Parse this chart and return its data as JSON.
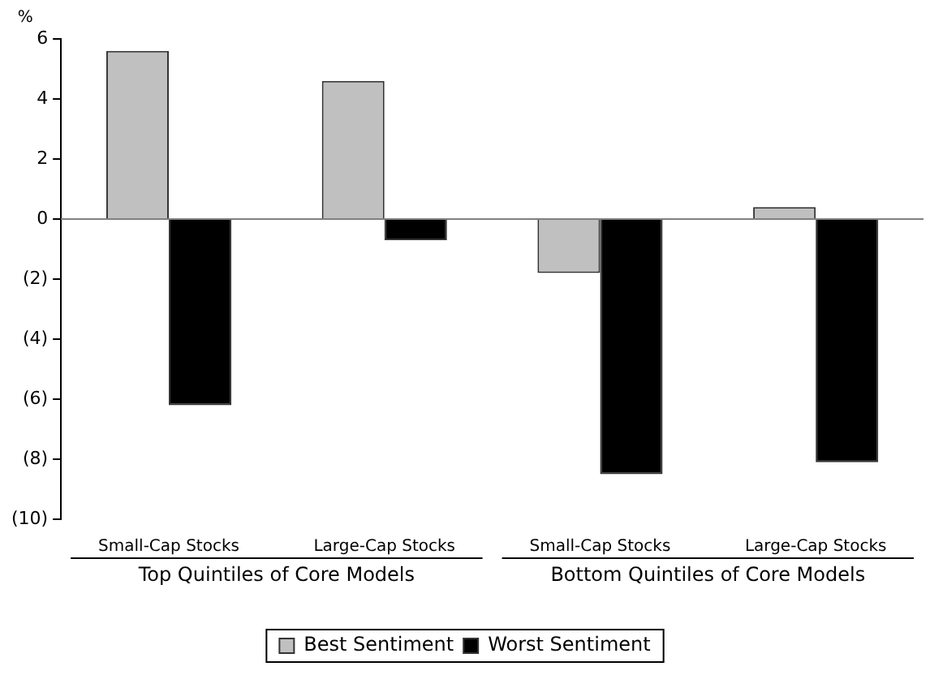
{
  "chart_data": {
    "type": "bar",
    "ylabel": "%",
    "categories": [
      "Small-Cap Stocks",
      "Large-Cap Stocks",
      "Small-Cap Stocks",
      "Large-Cap Stocks"
    ],
    "annotations": [
      "Top Quintiles of Core Models",
      "Bottom Quintiles of Core Models"
    ],
    "series": [
      {
        "name": "Best Sentiment",
        "color": "#c0c0c0",
        "values": [
          5.6,
          4.6,
          -1.8,
          0.4
        ]
      },
      {
        "name": "Worst Sentiment",
        "color": "#000000",
        "values": [
          -6.2,
          -0.7,
          -8.5,
          -8.1
        ]
      }
    ],
    "ylim": [
      -10,
      6
    ],
    "yticks": [
      {
        "value": -10,
        "label": "(10)"
      },
      {
        "value": -8,
        "label": "(8)"
      },
      {
        "value": -6,
        "label": "(6)"
      },
      {
        "value": -4,
        "label": "(4)"
      },
      {
        "value": -2,
        "label": "(2)"
      },
      0,
      2,
      4,
      6
    ],
    "legend": "bottom"
  }
}
